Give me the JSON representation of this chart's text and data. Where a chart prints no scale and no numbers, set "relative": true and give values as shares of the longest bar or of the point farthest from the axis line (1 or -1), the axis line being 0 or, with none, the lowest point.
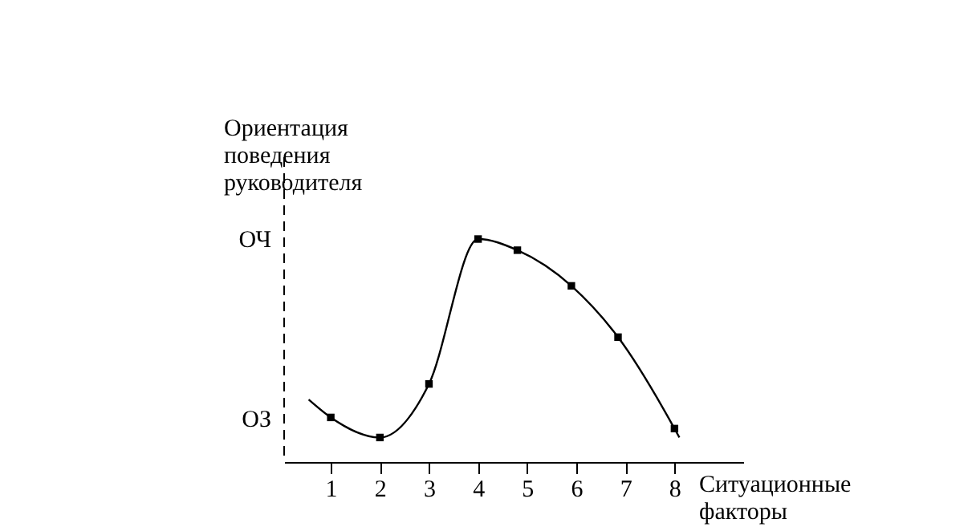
{
  "chart_data": {
    "type": "line",
    "relative": true,
    "xlabel": "Ситуационные факторы",
    "ylabel": "Ориентация поведения руководителя",
    "xlim": [
      0.05,
      9.4
    ],
    "xticks": [
      1,
      2,
      3,
      4,
      5,
      6,
      7,
      8
    ],
    "annotations": [
      "ОЗ",
      "ОЧ"
    ],
    "series": [
      {
        "type": "line",
        "color": "#000000",
        "marker": "none",
        "line_style": "solid",
        "x": [
          0.55,
          1,
          2,
          3,
          4,
          4.8,
          5.9,
          6.85,
          8,
          8.1
        ],
        "values": [
          0.28,
          0.2,
          0.11,
          0.35,
          1,
          0.95,
          0.79,
          0.56,
          0.15,
          0.11
        ]
      },
      {
        "type": "scatter",
        "color": "#000000",
        "marker": "square",
        "x": [
          1,
          2,
          3,
          4,
          4.8,
          5.9,
          6.85,
          8
        ],
        "values": [
          0.2,
          0.11,
          0.35,
          1,
          0.95,
          0.79,
          0.56,
          0.15
        ]
      }
    ]
  }
}
